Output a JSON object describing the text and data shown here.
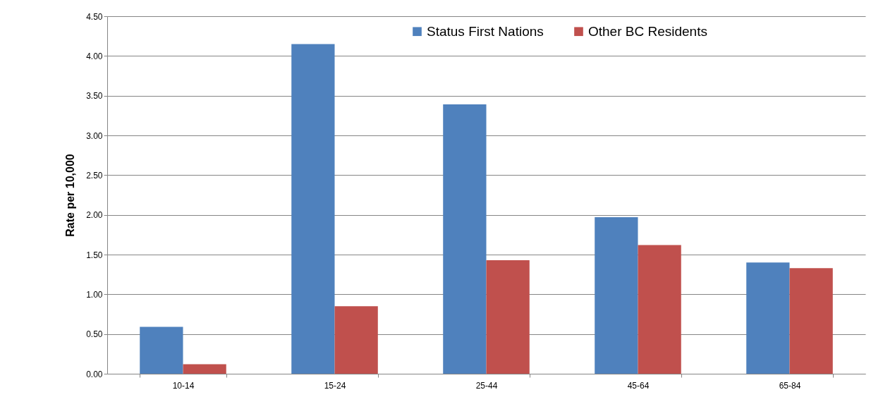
{
  "chart_data": {
    "type": "bar",
    "ylabel": "Rate per 10,000",
    "categories": [
      "10-14",
      "15-24",
      "25-44",
      "45-64",
      "65-84"
    ],
    "series": [
      {
        "name": "Status First Nations",
        "color": "#4f81bd",
        "values": [
          0.59,
          4.15,
          3.39,
          1.97,
          1.4
        ]
      },
      {
        "name": "Other BC Residents",
        "color": "#c0504d",
        "values": [
          0.12,
          0.85,
          1.43,
          1.62,
          1.33
        ]
      }
    ],
    "ylim": [
      0,
      4.5
    ],
    "yticks": [
      {
        "value": 0,
        "label": "0.00"
      },
      {
        "value": 0.5,
        "label": "0.50"
      },
      {
        "value": 1,
        "label": "1.00"
      },
      {
        "value": 1.5,
        "label": "1.50"
      },
      {
        "value": 2,
        "label": "2.00"
      },
      {
        "value": 2.5,
        "label": "2.50"
      },
      {
        "value": 3,
        "label": "3.00"
      },
      {
        "value": 3.5,
        "label": "3.50"
      },
      {
        "value": 4,
        "label": "4.00"
      },
      {
        "value": 4.5,
        "label": "4.50"
      }
    ],
    "grid": "y",
    "legend": "top"
  }
}
